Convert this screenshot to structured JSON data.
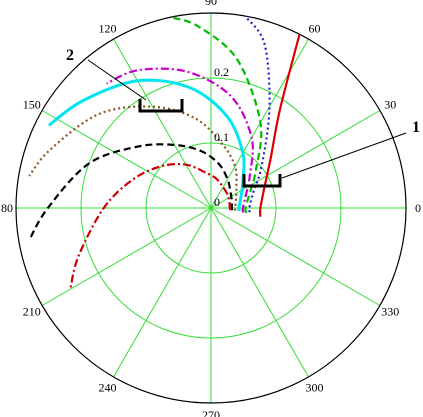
{
  "chart_data": {
    "type": "line",
    "subtype": "polar",
    "title": "",
    "grid": true,
    "angle_ticks_deg": [
      0,
      30,
      60,
      90,
      120,
      150,
      180,
      210,
      240,
      270,
      300,
      330
    ],
    "angle_tick_labels": [
      "0",
      "30",
      "60",
      "90",
      "120",
      "150",
      "180",
      "210",
      "240",
      "270",
      "300",
      "330"
    ],
    "radial_ticks": [
      0,
      0.1,
      0.2
    ],
    "radial_tick_labels": [
      "0",
      "0.1",
      "0.2"
    ],
    "rmax": 0.3,
    "grid_color": "#33dd33",
    "series": [
      {
        "color": "#dd0000",
        "dash": "solid",
        "values": [
          [
            -10,
            0.077
          ],
          [
            0,
            0.076
          ],
          [
            20,
            0.087
          ],
          [
            40,
            0.12
          ],
          [
            55,
            0.185
          ],
          [
            63,
            0.3
          ]
        ]
      },
      {
        "color": "#2222cc",
        "dash": "dot",
        "values": [
          [
            -6,
            0.06
          ],
          [
            0,
            0.059
          ],
          [
            20,
            0.069
          ],
          [
            40,
            0.102
          ],
          [
            60,
            0.18
          ],
          [
            72,
            0.266
          ],
          [
            80,
            0.3
          ]
        ]
      },
      {
        "color": "#00bb00",
        "dash": "dash",
        "values": [
          [
            -8,
            0.055
          ],
          [
            0,
            0.053
          ],
          [
            20,
            0.063
          ],
          [
            40,
            0.09
          ],
          [
            60,
            0.152
          ],
          [
            80,
            0.232
          ],
          [
            94,
            0.28
          ],
          [
            102,
            0.3
          ]
        ]
      },
      {
        "color": "#cc00cc",
        "dash": "dashdot",
        "values": [
          [
            -8,
            0.05
          ],
          [
            0,
            0.049
          ],
          [
            20,
            0.057
          ],
          [
            40,
            0.078
          ],
          [
            60,
            0.125
          ],
          [
            80,
            0.175
          ],
          [
            100,
            0.213
          ],
          [
            118,
            0.24
          ],
          [
            130,
            0.25
          ]
        ]
      },
      {
        "color": "#00e5ee",
        "dash": "solid",
        "values": [
          [
            -6,
            0.044
          ],
          [
            0,
            0.043
          ],
          [
            20,
            0.049
          ],
          [
            40,
            0.064
          ],
          [
            60,
            0.098
          ],
          [
            80,
            0.143
          ],
          [
            100,
            0.188
          ],
          [
            120,
            0.226
          ],
          [
            140,
            0.257
          ],
          [
            153,
            0.28
          ]
        ]
      },
      {
        "color": "#885522",
        "dash": "dot",
        "values": [
          [
            -6,
            0.038
          ],
          [
            0,
            0.037
          ],
          [
            20,
            0.041
          ],
          [
            40,
            0.051
          ],
          [
            60,
            0.074
          ],
          [
            80,
            0.1
          ],
          [
            100,
            0.14
          ],
          [
            120,
            0.18
          ],
          [
            140,
            0.225
          ],
          [
            160,
            0.263
          ],
          [
            170,
            0.284
          ]
        ]
      },
      {
        "color": "#000000",
        "dash": "dash",
        "values": [
          [
            -6,
            0.033
          ],
          [
            0,
            0.032
          ],
          [
            20,
            0.034
          ],
          [
            40,
            0.039
          ],
          [
            60,
            0.051
          ],
          [
            80,
            0.069
          ],
          [
            100,
            0.089
          ],
          [
            120,
            0.112
          ],
          [
            140,
            0.147
          ],
          [
            160,
            0.2
          ],
          [
            180,
            0.251
          ],
          [
            190,
            0.284
          ]
        ]
      },
      {
        "color": "#cc0000",
        "dash": "dashdot",
        "values": [
          [
            -6,
            0.03
          ],
          [
            0,
            0.029
          ],
          [
            20,
            0.03
          ],
          [
            40,
            0.033
          ],
          [
            60,
            0.037
          ],
          [
            80,
            0.046
          ],
          [
            100,
            0.056
          ],
          [
            120,
            0.077
          ],
          [
            140,
            0.1
          ],
          [
            160,
            0.128
          ],
          [
            180,
            0.165
          ],
          [
            200,
            0.217
          ],
          [
            210,
            0.25
          ]
        ]
      }
    ],
    "callouts": [
      {
        "label": "1"
      },
      {
        "label": "2"
      }
    ]
  }
}
